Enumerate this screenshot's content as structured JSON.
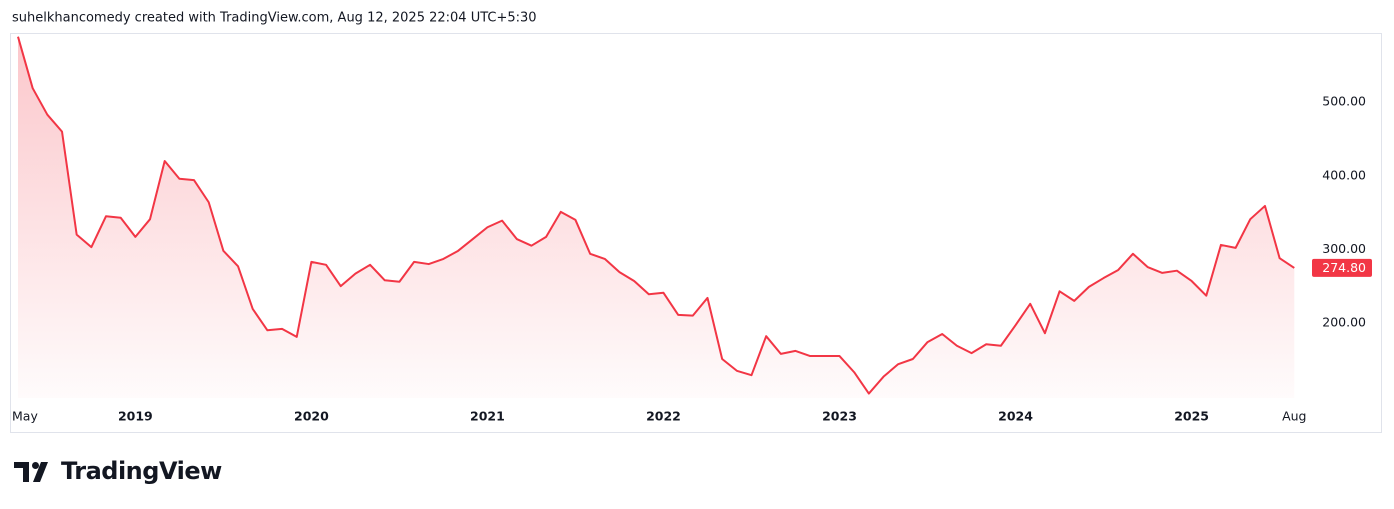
{
  "header": "suhelkhancomedy created with TradingView.com, Aug 12, 2025 22:04 UTC+5:30",
  "brand": "TradingView",
  "chart_data": {
    "type": "area",
    "color": "#f23645",
    "grid": false,
    "categories": [
      "May",
      null,
      null,
      null,
      null,
      null,
      null,
      null,
      "2019",
      null,
      null,
      null,
      null,
      null,
      null,
      null,
      null,
      null,
      null,
      null,
      "2020",
      null,
      null,
      null,
      null,
      null,
      null,
      null,
      null,
      null,
      null,
      null,
      "2021",
      null,
      null,
      null,
      null,
      null,
      null,
      null,
      null,
      null,
      null,
      null,
      "2022",
      null,
      null,
      null,
      null,
      null,
      null,
      null,
      null,
      null,
      null,
      null,
      "2023",
      null,
      null,
      null,
      null,
      null,
      null,
      null,
      null,
      null,
      null,
      null,
      "2024",
      null,
      null,
      null,
      null,
      null,
      null,
      null,
      null,
      null,
      null,
      null,
      "2025",
      null,
      null,
      null,
      null,
      null,
      null,
      "Aug"
    ],
    "values": [
      589,
      519,
      483,
      460,
      320,
      303,
      345,
      343,
      317,
      341,
      420,
      396,
      394,
      364,
      298,
      277,
      219,
      190,
      192,
      181,
      283,
      279,
      250,
      267,
      279,
      258,
      256,
      283,
      280,
      287,
      298,
      314,
      330,
      339,
      314,
      305,
      317,
      351,
      340,
      294,
      287,
      269,
      257,
      239,
      241,
      211,
      210,
      234,
      151,
      135,
      129,
      182,
      158,
      162,
      155,
      155,
      155,
      133,
      104,
      127,
      144,
      151,
      174,
      185,
      169,
      159,
      171,
      169,
      197,
      226,
      186,
      243,
      230,
      249,
      261,
      272,
      294,
      276,
      268,
      271,
      257,
      237,
      306,
      302,
      341,
      359,
      288,
      274.8
    ],
    "value_labels": [
      null,
      null,
      null,
      null,
      null,
      null,
      null,
      null,
      null,
      null,
      null,
      null,
      null,
      null,
      null,
      null,
      null,
      null,
      null,
      null,
      null,
      null,
      null,
      null,
      null,
      null,
      null,
      null,
      null,
      null,
      null,
      null,
      null,
      null,
      null,
      null,
      null,
      null,
      null,
      null,
      null,
      null,
      null,
      null,
      null,
      null,
      null,
      null,
      null,
      null,
      null,
      null,
      null,
      null,
      null,
      null,
      null,
      null,
      null,
      null,
      null,
      null,
      null,
      null,
      null,
      null,
      null,
      null,
      null,
      null,
      null,
      null,
      null,
      null,
      null,
      null,
      null,
      null,
      null,
      null,
      null,
      null,
      null,
      null,
      null,
      null,
      null,
      "274.80"
    ],
    "ylim": [
      98,
      594
    ],
    "yticks": [
      {
        "value": 200,
        "label": "200.00"
      },
      {
        "value": 300,
        "label": "300.00"
      },
      {
        "value": 400,
        "label": "400.00"
      },
      {
        "value": 500,
        "label": "500.00"
      }
    ]
  }
}
